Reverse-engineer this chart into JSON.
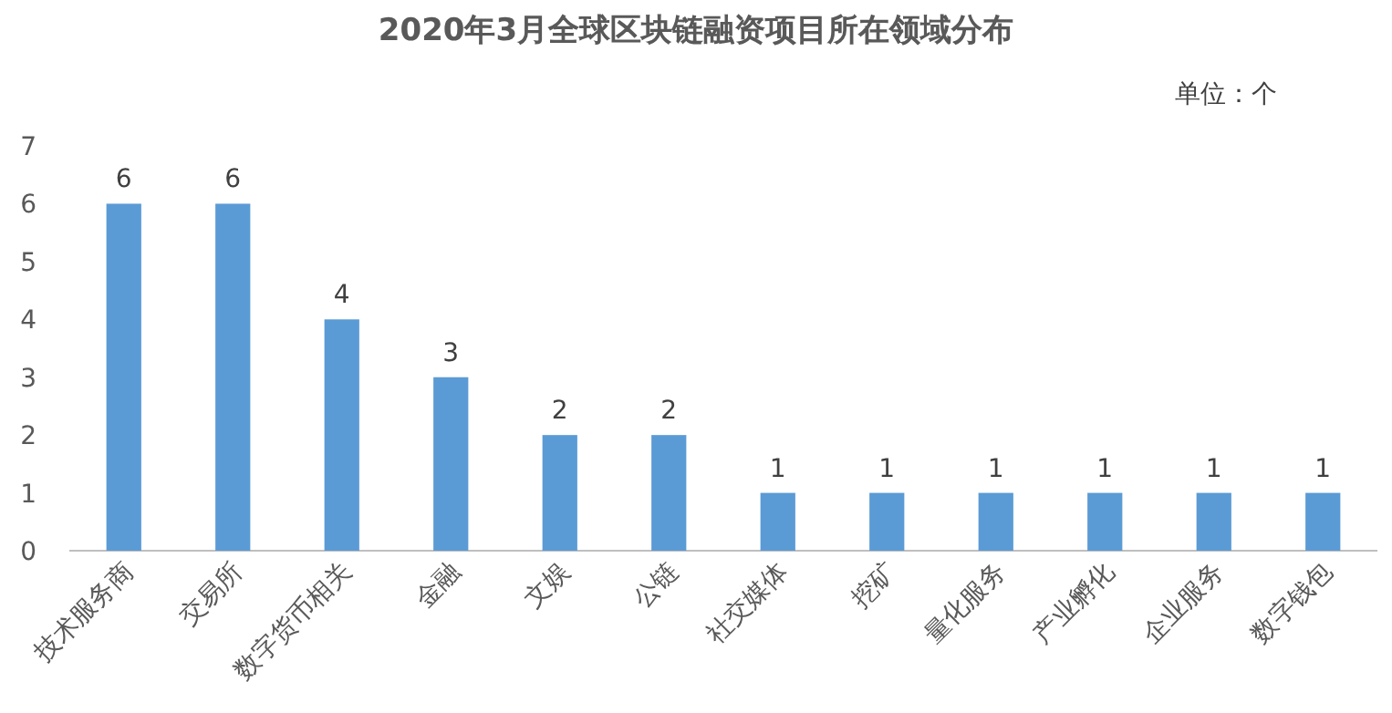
{
  "chart_data": {
    "type": "bar",
    "title": "2020年3月全球区块链融资项目所在领域分布",
    "annotations": [
      "单位：个"
    ],
    "categories": [
      "技术服务商",
      "交易所",
      "数字货币相关",
      "金融",
      "文娱",
      "公链",
      "社交媒体",
      "挖矿",
      "量化服务",
      "产业孵化",
      "企业服务",
      "数字钱包"
    ],
    "values": [
      6,
      6,
      4,
      3,
      2,
      2,
      1,
      1,
      1,
      1,
      1,
      1
    ],
    "color": "#5b9bd5",
    "ylim": [
      0,
      7
    ],
    "yticks": [
      0,
      1,
      2,
      3,
      4,
      5,
      6,
      7
    ],
    "data_labels": true
  }
}
